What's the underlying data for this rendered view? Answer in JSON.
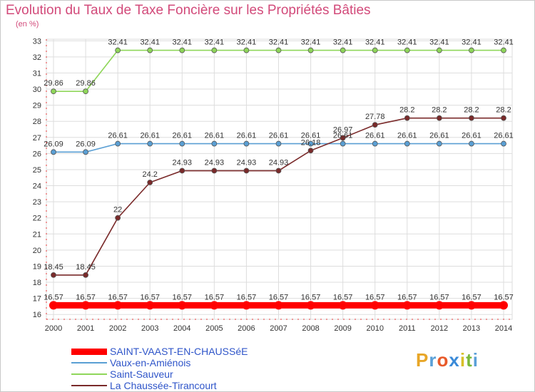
{
  "header": {
    "title": "Evolution du Taux de Taxe Foncière sur les Propriétés Bâties",
    "unit_label": "(en %)"
  },
  "chart_data": {
    "type": "line",
    "title": "Evolution du Taux de Taxe Foncière sur les Propriétés Bâties",
    "ylabel": "(en %)",
    "xlabel": "",
    "x": [
      "2000",
      "2001",
      "2002",
      "2003",
      "2004",
      "2005",
      "2006",
      "2007",
      "2008",
      "2009",
      "2010",
      "2011",
      "2012",
      "2013",
      "2014"
    ],
    "y_ticks": [
      "16",
      "17",
      "18",
      "19",
      "20",
      "21",
      "22",
      "23",
      "24",
      "25",
      "26",
      "27",
      "28",
      "29",
      "30",
      "31",
      "32",
      "33"
    ],
    "ylim": [
      15.7,
      33.1
    ],
    "grid": true,
    "series": [
      {
        "name": "SAINT-VAAST-EN-CHAUSSéE",
        "color": "#ff0000",
        "values": [
          16.57,
          16.57,
          16.57,
          16.57,
          16.57,
          16.57,
          16.57,
          16.57,
          16.57,
          16.57,
          16.57,
          16.57,
          16.57,
          16.57,
          16.57
        ],
        "labels": [
          "16.57",
          "16.57",
          "16.57",
          "16.57",
          "16.57",
          "16.57",
          "16.57",
          "16.57",
          "16.57",
          "16.57",
          "16.57",
          "16.57",
          "16.57",
          "16.57",
          "16.57"
        ]
      },
      {
        "name": "Vaux-en-Amiénois",
        "color": "#5a9fd4",
        "values": [
          26.09,
          26.09,
          26.61,
          26.61,
          26.61,
          26.61,
          26.61,
          26.61,
          26.61,
          26.61,
          26.61,
          26.61,
          26.61,
          26.61,
          26.61
        ],
        "labels": [
          "26.09",
          "26.09",
          "26.61",
          "26.61",
          "26.61",
          "26.61",
          "26.61",
          "26.61",
          "26.61",
          "26.61",
          "26.61",
          "26.61",
          "26.61",
          "26.61",
          "26.61"
        ]
      },
      {
        "name": "Saint-Sauveur",
        "color": "#8fd65a",
        "values": [
          29.86,
          29.86,
          32.41,
          32.41,
          32.41,
          32.41,
          32.41,
          32.41,
          32.41,
          32.41,
          32.41,
          32.41,
          32.41,
          32.41,
          32.41
        ],
        "labels": [
          "29.86",
          "29.86",
          "32.41",
          "32.41",
          "32.41",
          "32.41",
          "32.41",
          "32.41",
          "32.41",
          "32.41",
          "32.41",
          "32.41",
          "32.41",
          "32.41",
          "32.41"
        ]
      },
      {
        "name": "La Chaussée-Tirancourt",
        "color": "#7a2a2a",
        "values": [
          18.45,
          18.45,
          22,
          24.2,
          24.93,
          24.93,
          24.93,
          24.93,
          26.18,
          26.97,
          27.78,
          28.2,
          28.2,
          28.2,
          28.2
        ],
        "labels": [
          "18.45",
          "18.45",
          "22",
          "24.2",
          "24.93",
          "24.93",
          "24.93",
          "24.93",
          "26.18",
          "26.97",
          "27.78",
          "28.2",
          "28.2",
          "28.2",
          "28.2"
        ]
      }
    ],
    "legend_position": "bottom-left"
  },
  "logo": {
    "letters": [
      "P",
      "r",
      "o",
      "x",
      "i",
      "t",
      "i"
    ],
    "colors": [
      "#e8a628",
      "#5aa0d8",
      "#e85a2a",
      "#3a8ad8",
      "#d8c028",
      "#7ab83a",
      "#5aa0d8"
    ]
  }
}
